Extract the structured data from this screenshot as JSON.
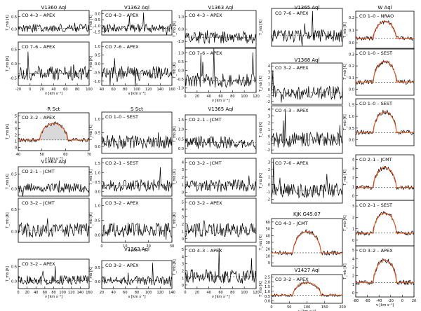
{
  "figure": {
    "columns": [
      {
        "panels": [
          {
            "title": "V1360 Aql",
            "label": "CO 4–3 – APEX",
            "ytick_labels": [
              "0.0",
              "0.5"
            ],
            "fill": false,
            "fit": false
          },
          {
            "title": "",
            "label": "CO 7–6 – APEX",
            "ytick_labels": [
              "-0.5",
              "0.0",
              "0.5"
            ],
            "fill": false,
            "fit": false,
            "xtick_labels": [
              "-20",
              "0",
              "20",
              "40",
              "60",
              "80",
              "100"
            ],
            "xlabel": "v [km s⁻¹]"
          },
          {
            "title": "R Sct",
            "label": "CO 3–2 – APEX",
            "ytick_labels": [
              "0",
              "1",
              "2",
              "3",
              "4",
              "5"
            ],
            "fill": true,
            "fit": true,
            "xtick_labels": [
              "40",
              "50",
              "60",
              "70"
            ],
            "xlabel": "v [km s⁻¹]"
          },
          {
            "title": "V1362 Aql",
            "label": "CO 2–1 – JCMT",
            "ytick_labels": [
              "0.0",
              "0.5"
            ],
            "fill": false,
            "fit": false
          },
          {
            "title": "",
            "label": "CO 3–2 – JCMT",
            "ytick_labels": [
              "0.0",
              "0.5"
            ],
            "fill": false,
            "fit": false
          },
          {
            "title": "",
            "label": "CO 3–2 – APEX",
            "ytick_labels": [
              "0.0",
              "0.5"
            ],
            "fill": false,
            "fit": false,
            "xtick_labels": [
              "0",
              "20",
              "40",
              "60",
              "80",
              "100",
              "120",
              "140",
              "160"
            ],
            "xlabel": "v [km s⁻¹]"
          }
        ]
      },
      {
        "panels": [
          {
            "title": "V1362 Aql",
            "label": "CO 4–3 – APEX",
            "ytick_labels": [
              "-1.5",
              "-1.0",
              "-0.5",
              "0.0"
            ],
            "fill": false,
            "fit": false
          },
          {
            "title": "",
            "label": "CO 7–6 – APEX",
            "ytick_labels": [
              "-1.0",
              "-0.5",
              "0.0",
              "0.5",
              "1.0"
            ],
            "fill": false,
            "fit": false,
            "xtick_labels": [
              "40",
              "60",
              "80",
              "100",
              "120",
              "140",
              "160"
            ],
            "xlabel": "v [km s⁻¹]"
          },
          {
            "title": "S Sct",
            "label": "CO 1–0 – SEST",
            "ytick_labels": [
              "0.0",
              "0.5",
              "1.0"
            ],
            "fill": false,
            "fit": false
          },
          {
            "title": "",
            "label": "CO 2–1 – SEST",
            "ytick_labels": [
              "0.0",
              "0.5",
              "1.0",
              "1.5"
            ],
            "fill": false,
            "fit": false
          },
          {
            "title": "",
            "label": "CO 3–2 – APEX",
            "ytick_labels": [
              "0.0",
              "0.5",
              "1.0"
            ],
            "fill": false,
            "fit": false,
            "xtick_labels": [
              "0",
              "10",
              "20",
              "30"
            ],
            "xlabel": "v [km s⁻¹]"
          },
          {
            "title": "V1363 Aql",
            "label": "CO 3–2 – APEX",
            "ytick_labels": [
              "0.0",
              "0.5"
            ],
            "fill": false,
            "fit": false,
            "xtick_labels": [
              "20",
              "40",
              "60",
              "80",
              "100",
              "120",
              "140"
            ],
            "xlabel": "v [km s⁻¹]"
          }
        ]
      },
      {
        "panels": [
          {
            "title": "V1363 Aql",
            "label": "CO 4–3 – APEX",
            "ytick_labels": [
              "-1.0",
              "0.0",
              "1.0"
            ],
            "fill": false,
            "fit": false
          },
          {
            "title": "",
            "label": "CO 7–6 – APEX",
            "ytick_labels": [
              "-1.0",
              "-0.5",
              "0.0",
              "0.5",
              "1.0"
            ],
            "fill": false,
            "fit": false,
            "xtick_labels": [
              "0",
              "20",
              "40",
              "60",
              "80",
              "100",
              "120"
            ],
            "xlabel": "v [km s⁻¹]"
          },
          {
            "title": "V1365 Aql",
            "label": "CO 2–1 – JCMT",
            "ytick_labels": [
              "0.0",
              "0.5",
              "1.0",
              "1.5"
            ],
            "fill": false,
            "fit": false
          },
          {
            "title": "",
            "label": "CO 3–2 – JCMT",
            "ytick_labels": [
              "0",
              "1",
              "2",
              "3",
              "4"
            ],
            "fill": false,
            "fit": false
          },
          {
            "title": "",
            "label": "CO 3–2 – APEX",
            "ytick_labels": [
              "0",
              "1",
              "2",
              "3",
              "4",
              "5"
            ],
            "fill": false,
            "fit": false
          },
          {
            "title": "",
            "label": "CO 4–3 – APEX",
            "ytick_labels": [
              "0",
              "1",
              "2",
              "3",
              "4",
              "5"
            ],
            "fill": false,
            "fit": false,
            "xtick_labels": [
              "0",
              "20",
              "40",
              "60",
              "80",
              "100",
              "120"
            ],
            "xlabel": "v [km s⁻¹]"
          }
        ]
      },
      {
        "panels": [
          {
            "title": "V1365 Aql",
            "label": "CO 7–6 – APEX",
            "ytick_labels": [],
            "fill": false,
            "fit": false
          },
          {
            "title": "V1368 Aql",
            "label": "CO 3–2 – APEX",
            "ytick_labels": [
              "-2",
              "-1",
              "0",
              "1",
              "2",
              "3",
              "4"
            ],
            "fill": false,
            "fit": false
          },
          {
            "title": "",
            "label": "CO 4–3 – APEX",
            "ytick_labels": [
              "-2",
              "-1",
              "0",
              "1",
              "2",
              "3",
              "4"
            ],
            "fill": false,
            "fit": false
          },
          {
            "title": "",
            "label": "CO 7–6 – APEX",
            "ytick_labels": [
              "-2",
              "-1",
              "0",
              "1",
              "2",
              "3"
            ],
            "fill": false,
            "fit": false
          },
          {
            "title": "KJK G45.07",
            "label": "CO 4–3 – JCMT",
            "ytick_labels": [
              "0",
              "10",
              "20",
              "30",
              "40",
              "50",
              "60"
            ],
            "fill": false,
            "fit": true
          },
          {
            "title": "V1427 Aql",
            "label": "CO 3–2 – APEX",
            "ytick_labels": [
              "0.0",
              "0.5",
              "1.0",
              "1.5",
              "2.0",
              "2.5"
            ],
            "fill": false,
            "fit": true,
            "xtick_labels": [
              "0",
              "50",
              "100",
              "150",
              "200"
            ],
            "xlabel": "v [km s⁻¹]"
          }
        ]
      },
      {
        "panels": [
          {
            "title": "W Aql",
            "label": "CO 1–0 – NRAO",
            "ytick_labels": [
              "0.0",
              "0.1",
              "0.2"
            ],
            "fill": false,
            "fit": true
          },
          {
            "title": "",
            "label": "CO 1–0 – SEST",
            "ytick_labels": [
              "0.0",
              "0.1",
              "0.2",
              "0.3"
            ],
            "fill": false,
            "fit": true
          },
          {
            "title": "",
            "label": "CO 1–0 – SEST",
            "ytick_labels": [
              "0.0",
              "0.5",
              "1.0",
              "1.5"
            ],
            "fill": false,
            "fit": true
          },
          {
            "title": "",
            "label": "CO 2–1 – JCMT",
            "ytick_labels": [
              "0",
              "1",
              "2",
              "3",
              "4"
            ],
            "fill": false,
            "fit": true
          },
          {
            "title": "",
            "label": "CO 2–1 – SEST",
            "ytick_labels": [
              "0",
              "1",
              "2",
              "3"
            ],
            "fill": false,
            "fit": true
          },
          {
            "title": "",
            "label": "CO 3–2 – APEX",
            "ytick_labels": [
              "0",
              "1",
              "2",
              "3",
              "4",
              "5"
            ],
            "fill": false,
            "fit": true,
            "xtick_labels": [
              "-80",
              "-60",
              "-40",
              "-20",
              "0",
              "20"
            ],
            "xlabel": "v [km s⁻¹]"
          }
        ]
      }
    ]
  },
  "chart_data": {
    "type": "line",
    "ylabel": "T_mb [K]",
    "xlabel": "v [km s⁻¹]",
    "style": {
      "line_color": "#000000",
      "fit_color": "#e8541e",
      "fill_color": "#000000",
      "axis_color": "#000000"
    },
    "notes_visible": "Grid of CO emission-line spectra, each panel a spectrum with a dashed zero baseline; orange curves are model fits."
  }
}
